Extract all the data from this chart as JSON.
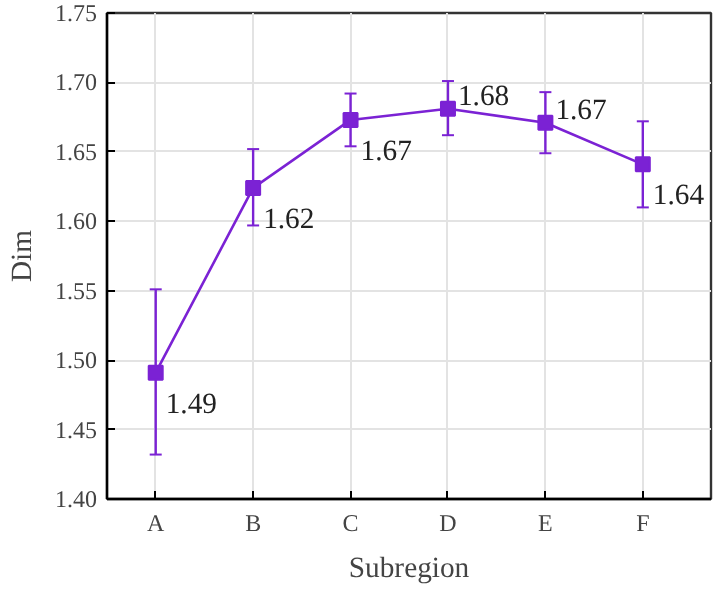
{
  "chart_data": {
    "type": "line",
    "xlabel": "Subregion",
    "ylabel": "Dim",
    "categories": [
      "A",
      "B",
      "C",
      "D",
      "E",
      "F"
    ],
    "series": [
      {
        "color": "#7b22d4",
        "values": [
          1.491,
          1.624,
          1.673,
          1.681,
          1.671,
          1.641
        ],
        "errors": [
          [
            1.432,
            1.551
          ],
          [
            1.597,
            1.652
          ],
          [
            1.654,
            1.692
          ],
          [
            1.662,
            1.701
          ],
          [
            1.649,
            1.693
          ],
          [
            1.61,
            1.672
          ]
        ],
        "value_labels": [
          "1.49",
          "1.62",
          "1.67",
          "1.68",
          "1.67",
          "1.64"
        ]
      }
    ],
    "ylim": [
      1.4,
      1.75
    ],
    "yticks": [
      {
        "value": 1.4,
        "label": "1.40"
      },
      1.45,
      {
        "value": 1.5,
        "label": "1.50"
      },
      1.55,
      {
        "value": 1.6,
        "label": "1.60"
      },
      1.65,
      {
        "value": 1.7,
        "label": "1.70"
      },
      1.75
    ],
    "grid": true,
    "marker": "square",
    "line_style": "solid"
  }
}
